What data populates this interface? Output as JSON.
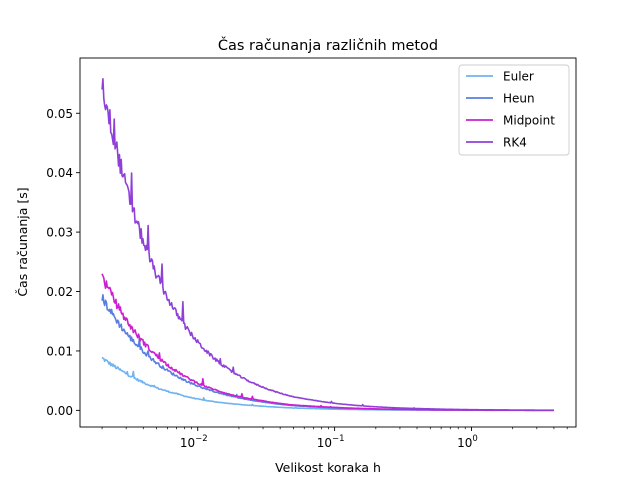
{
  "chart_data": {
    "type": "line",
    "title": "Čas računanja različnih metod",
    "xlabel": "Velikost koraka h",
    "ylabel": "Čas računanja [s]",
    "xscale": "log",
    "xlim": [
      0.00138,
      5.8
    ],
    "ylim": [
      -0.0028,
      0.0593
    ],
    "grid": false,
    "legend_position": "top-right",
    "y_ticks": [
      {
        "value": 0.0,
        "label": "0.00"
      },
      {
        "value": 0.01,
        "label": "0.01"
      },
      {
        "value": 0.02,
        "label": "0.02"
      },
      {
        "value": 0.03,
        "label": "0.03"
      },
      {
        "value": 0.04,
        "label": "0.04"
      },
      {
        "value": 0.05,
        "label": "0.05"
      }
    ],
    "x_major_ticks": [
      {
        "value": 0.01,
        "base": "10",
        "exp": "−2"
      },
      {
        "value": 0.1,
        "base": "10",
        "exp": "−1"
      },
      {
        "value": 1,
        "base": "10",
        "exp": "0"
      }
    ],
    "x_minor_ticks": [
      0.002,
      0.003,
      0.004,
      0.005,
      0.006,
      0.007,
      0.008,
      0.009,
      0.02,
      0.03,
      0.04,
      0.05,
      0.06,
      0.07,
      0.08,
      0.09,
      0.2,
      0.3,
      0.4,
      0.5,
      0.6,
      0.7,
      0.8,
      0.9,
      2,
      3,
      4,
      5
    ],
    "x": [
      0.002,
      0.0025,
      0.003,
      0.004,
      0.005,
      0.007,
      0.01,
      0.015,
      0.02,
      0.03,
      0.05,
      0.07,
      0.1,
      0.2,
      0.3,
      0.5,
      1,
      2,
      4
    ],
    "series": [
      {
        "name": "Euler",
        "color": "#6fb3f0",
        "values": [
          0.0088,
          0.0073,
          0.0062,
          0.0047,
          0.0038,
          0.0028,
          0.0019,
          0.0013,
          0.001,
          0.0007,
          0.0004,
          0.0003,
          0.0002,
          0.0001,
          7e-05,
          4e-05,
          2e-05,
          1e-05,
          5e-06
        ]
      },
      {
        "name": "Heun",
        "color": "#5a7de0",
        "values": [
          0.019,
          0.0155,
          0.013,
          0.01,
          0.008,
          0.0058,
          0.0041,
          0.0028,
          0.0021,
          0.0014,
          0.0008,
          0.0006,
          0.0004,
          0.0002,
          0.00013,
          8e-05,
          4e-05,
          2e-05,
          1e-05
        ]
      },
      {
        "name": "Midpoint",
        "color": "#cc1fcf",
        "values": [
          0.0225,
          0.0183,
          0.0152,
          0.0115,
          0.0092,
          0.0066,
          0.0046,
          0.0031,
          0.0023,
          0.0016,
          0.0009,
          0.0007,
          0.0005,
          0.00025,
          0.00016,
          0.0001,
          5e-05,
          2e-05,
          1e-05
        ]
      },
      {
        "name": "RK4",
        "color": "#9040d8",
        "values": [
          0.055,
          0.045,
          0.0375,
          0.0285,
          0.0228,
          0.0163,
          0.0115,
          0.0077,
          0.0058,
          0.0039,
          0.0023,
          0.0017,
          0.0012,
          0.0006,
          0.0004,
          0.00025,
          0.00012,
          6e-05,
          3e-05
        ]
      }
    ]
  }
}
